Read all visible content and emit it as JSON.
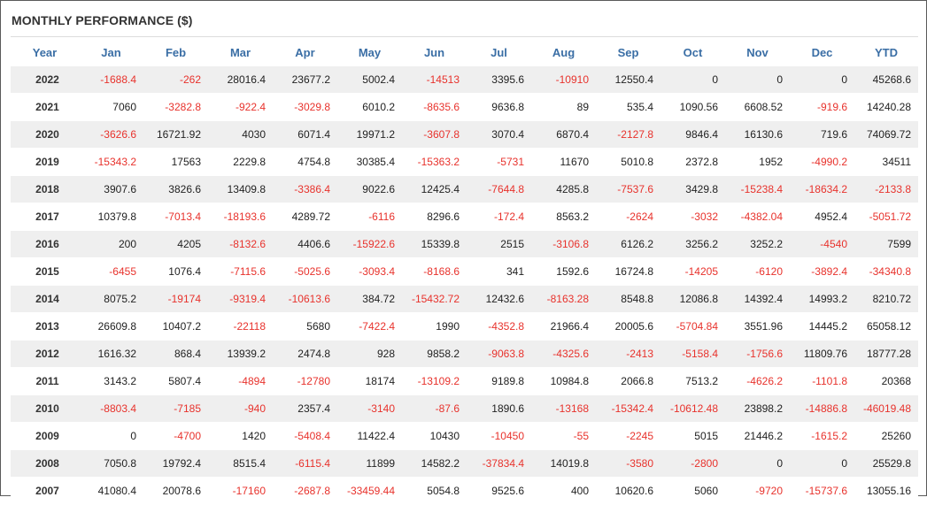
{
  "title": "MONTHLY PERFORMANCE ($)",
  "colors": {
    "header": "#3a6ea5",
    "negative": "#e8322c",
    "stripe": "#efefef"
  },
  "columns": [
    "Year",
    "Jan",
    "Feb",
    "Mar",
    "Apr",
    "May",
    "Jun",
    "Jul",
    "Aug",
    "Sep",
    "Oct",
    "Nov",
    "Dec",
    "YTD"
  ],
  "rows": [
    [
      "2022",
      "-1688.4",
      "-262",
      "28016.4",
      "23677.2",
      "5002.4",
      "-14513",
      "3395.6",
      "-10910",
      "12550.4",
      "0",
      "0",
      "0",
      "45268.6"
    ],
    [
      "2021",
      "7060",
      "-3282.8",
      "-922.4",
      "-3029.8",
      "6010.2",
      "-8635.6",
      "9636.8",
      "89",
      "535.4",
      "1090.56",
      "6608.52",
      "-919.6",
      "14240.28"
    ],
    [
      "2020",
      "-3626.6",
      "16721.92",
      "4030",
      "6071.4",
      "19971.2",
      "-3607.8",
      "3070.4",
      "6870.4",
      "-2127.8",
      "9846.4",
      "16130.6",
      "719.6",
      "74069.72"
    ],
    [
      "2019",
      "-15343.2",
      "17563",
      "2229.8",
      "4754.8",
      "30385.4",
      "-15363.2",
      "-5731",
      "11670",
      "5010.8",
      "2372.8",
      "1952",
      "-4990.2",
      "34511"
    ],
    [
      "2018",
      "3907.6",
      "3826.6",
      "13409.8",
      "-3386.4",
      "9022.6",
      "12425.4",
      "-7644.8",
      "4285.8",
      "-7537.6",
      "3429.8",
      "-15238.4",
      "-18634.2",
      "-2133.8"
    ],
    [
      "2017",
      "10379.8",
      "-7013.4",
      "-18193.6",
      "4289.72",
      "-6116",
      "8296.6",
      "-172.4",
      "8563.2",
      "-2624",
      "-3032",
      "-4382.04",
      "4952.4",
      "-5051.72"
    ],
    [
      "2016",
      "200",
      "4205",
      "-8132.6",
      "4406.6",
      "-15922.6",
      "15339.8",
      "2515",
      "-3106.8",
      "6126.2",
      "3256.2",
      "3252.2",
      "-4540",
      "7599"
    ],
    [
      "2015",
      "-6455",
      "1076.4",
      "-7115.6",
      "-5025.6",
      "-3093.4",
      "-8168.6",
      "341",
      "1592.6",
      "16724.8",
      "-14205",
      "-6120",
      "-3892.4",
      "-34340.8"
    ],
    [
      "2014",
      "8075.2",
      "-19174",
      "-9319.4",
      "-10613.6",
      "384.72",
      "-15432.72",
      "12432.6",
      "-8163.28",
      "8548.8",
      "12086.8",
      "14392.4",
      "14993.2",
      "8210.72"
    ],
    [
      "2013",
      "26609.8",
      "10407.2",
      "-22118",
      "5680",
      "-7422.4",
      "1990",
      "-4352.8",
      "21966.4",
      "20005.6",
      "-5704.84",
      "3551.96",
      "14445.2",
      "65058.12"
    ],
    [
      "2012",
      "1616.32",
      "868.4",
      "13939.2",
      "2474.8",
      "928",
      "9858.2",
      "-9063.8",
      "-4325.6",
      "-2413",
      "-5158.4",
      "-1756.6",
      "11809.76",
      "18777.28"
    ],
    [
      "2011",
      "3143.2",
      "5807.4",
      "-4894",
      "-12780",
      "18174",
      "-13109.2",
      "9189.8",
      "10984.8",
      "2066.8",
      "7513.2",
      "-4626.2",
      "-1101.8",
      "20368"
    ],
    [
      "2010",
      "-8803.4",
      "-7185",
      "-940",
      "2357.4",
      "-3140",
      "-87.6",
      "1890.6",
      "-13168",
      "-15342.4",
      "-10612.48",
      "23898.2",
      "-14886.8",
      "-46019.48"
    ],
    [
      "2009",
      "0",
      "-4700",
      "1420",
      "-5408.4",
      "11422.4",
      "10430",
      "-10450",
      "-55",
      "-2245",
      "5015",
      "21446.2",
      "-1615.2",
      "25260"
    ],
    [
      "2008",
      "7050.8",
      "19792.4",
      "8515.4",
      "-6115.4",
      "11899",
      "14582.2",
      "-37834.4",
      "14019.8",
      "-3580",
      "-2800",
      "0",
      "0",
      "25529.8"
    ],
    [
      "2007",
      "41080.4",
      "20078.6",
      "-17160",
      "-2687.8",
      "-33459.44",
      "5054.8",
      "9525.6",
      "400",
      "10620.6",
      "5060",
      "-9720",
      "-15737.6",
      "13055.16"
    ]
  ]
}
